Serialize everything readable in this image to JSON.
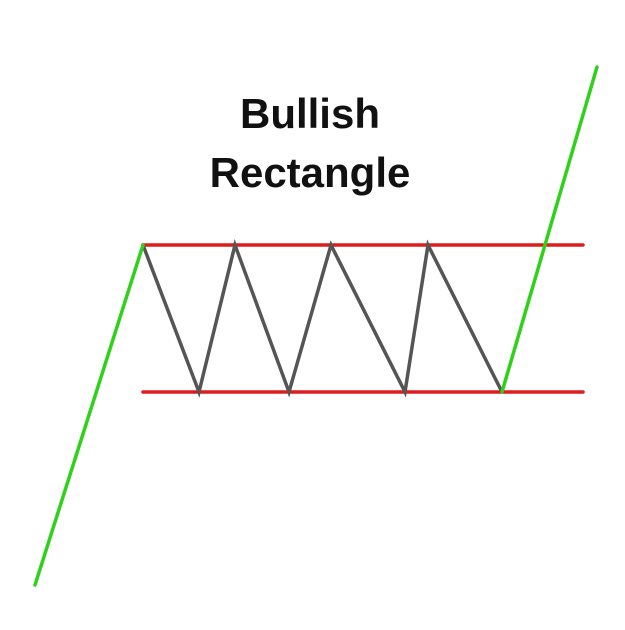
{
  "title": {
    "line1": "Bullish",
    "line2": "Rectangle"
  },
  "colors": {
    "background": "#ffffff",
    "title": "#111111",
    "boundary": "#dd1c1c",
    "trend": "#2fd11b",
    "consolidation": "#555555"
  }
}
